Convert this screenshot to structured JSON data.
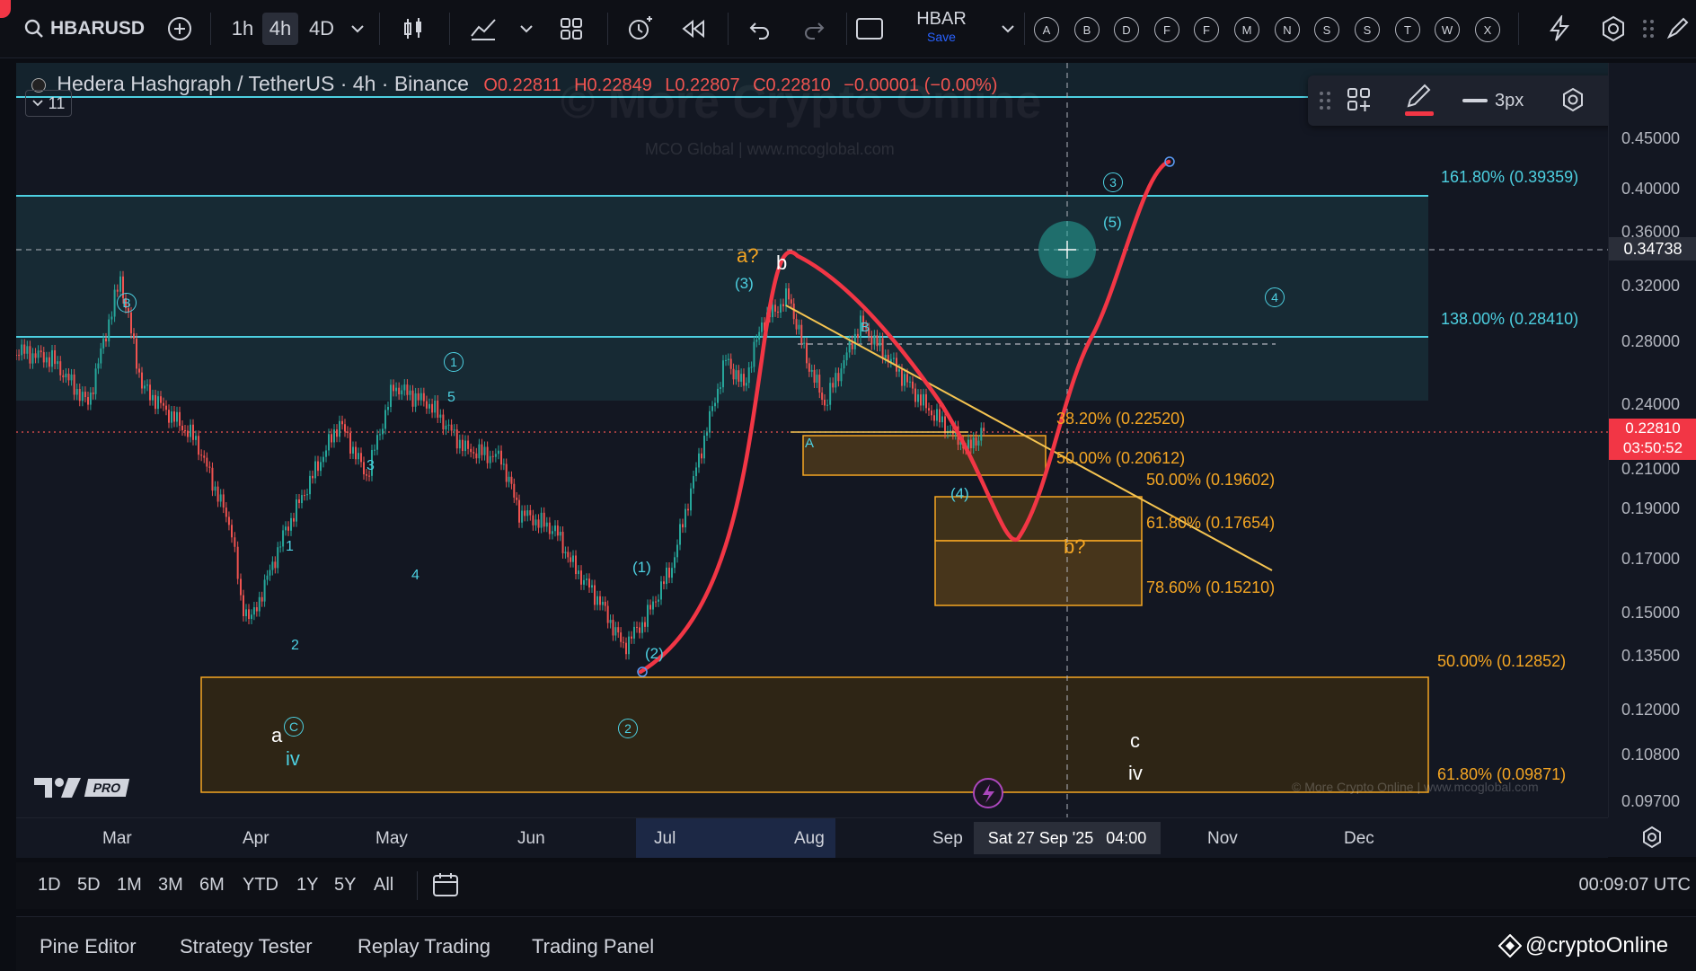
{
  "topbar": {
    "symbol": "HBARUSD",
    "intervals": [
      "1h",
      "4h",
      "4D"
    ],
    "active_interval": "4h",
    "layout_name": "HBAR",
    "layout_save": "Save",
    "alert_letters": [
      "A",
      "B",
      "D",
      "F",
      "F",
      "M",
      "N",
      "S",
      "S",
      "T",
      "W",
      "X"
    ]
  },
  "legend": {
    "title": "Hedera Hashgraph / TetherUS · 4h · Binance",
    "open": "O0.22811",
    "high": "H0.22849",
    "low": "L0.22807",
    "close": "C0.22810",
    "change": "−0.00001 (−0.00%)",
    "indicator_count": "11"
  },
  "watermark": {
    "main": "© More Crypto Online",
    "sub": "MCO Global  |  www.mcoglobal.com",
    "footer": "© More Crypto Online  |  www.mcoglobal.com"
  },
  "draw_toolbar": {
    "width_label": "3px"
  },
  "price_axis": {
    "ticks": [
      "0.45000",
      "0.40000",
      "0.36000",
      "0.32000",
      "0.28000",
      "0.24000",
      "0.21000",
      "0.19000",
      "0.17000",
      "0.15000",
      "0.13500",
      "0.12000",
      "0.10800",
      "0.09700"
    ],
    "crosshair_price": "0.34738",
    "last_price": "0.22810",
    "countdown": "03:50:52"
  },
  "time_axis": {
    "labels": [
      "Mar",
      "Apr",
      "May",
      "Jun",
      "Jul",
      "Aug",
      "Sep",
      "Nov",
      "Dec"
    ],
    "crosshair_date": "Sat 27 Sep '25",
    "crosshair_time": "04:00"
  },
  "fib_levels": {
    "f1618": "161.80% (0.39359)",
    "f138": "138.00% (0.28410)",
    "f382": "38.20% (0.22520)",
    "f50a": "50.00% (0.20612)",
    "f50b": "50.00% (0.19602)",
    "f618a": "61.80% (0.17654)",
    "f786": "78.60% (0.15210)",
    "f50c": "50.00% (0.12852)",
    "f618b": "61.80% (0.09871)"
  },
  "wave_labels": {
    "B_circ": "B",
    "c_circ": "C",
    "w1_circ": "1",
    "w2_circ": "2",
    "w3_circ": "3",
    "w4_circ": "4",
    "a_small": "a",
    "iv_small": "iv",
    "n1": "1",
    "n2": "2",
    "n3": "3",
    "n4": "4",
    "n5": "5",
    "p1": "(1)",
    "p2": "(2)",
    "p3": "(3)",
    "p4": "(4)",
    "p5": "(5)",
    "a_q": "a?",
    "b": "b",
    "b_q": "b?",
    "A": "A",
    "B_small": "B",
    "c_right": "c",
    "iv_right": "iv"
  },
  "range_bar": {
    "ranges": [
      "1D",
      "5D",
      "1M",
      "3M",
      "6M",
      "YTD",
      "1Y",
      "5Y",
      "All"
    ],
    "clock": "00:09:07 UTC"
  },
  "bottom_bar": {
    "tabs": [
      "Pine Editor",
      "Strategy Tester",
      "Replay Trading",
      "Trading Panel"
    ],
    "brand": "@cryptoOnline"
  },
  "colors": {
    "fib_cyan": "#4dd0e1",
    "fib_orange": "#f5a623",
    "projection": "#f23645",
    "bg": "#131722"
  }
}
